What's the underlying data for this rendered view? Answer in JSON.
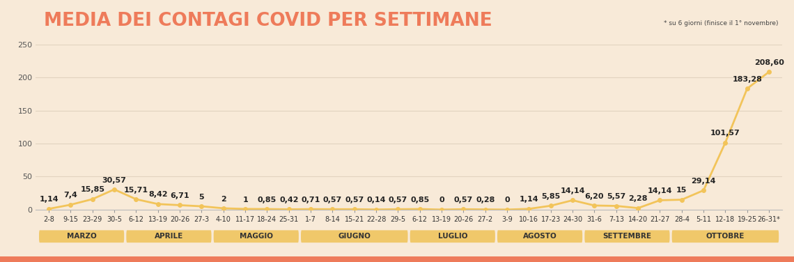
{
  "chart_data": {
    "type": "line",
    "title": "MEDIA DEI CONTAGI COVID PER SETTIMANE",
    "note": "* su 6 giorni (finisce il 1° novembre)",
    "categories": [
      "2-8",
      "9-15",
      "23-29",
      "30-5",
      "6-12",
      "13-19",
      "20-26",
      "27-3",
      "4-10",
      "11-17",
      "18-24",
      "25-31",
      "1-7",
      "8-14",
      "15-21",
      "22-28",
      "29-5",
      "6-12",
      "13-19",
      "20-26",
      "27-2",
      "3-9",
      "10-16",
      "17-23",
      "24-30",
      "31-6",
      "7-13",
      "14-20",
      "21-27",
      "28-4",
      "5-11",
      "12-18",
      "19-25",
      "26-31*"
    ],
    "values": [
      1.14,
      7.4,
      15.85,
      30.57,
      15.71,
      8.42,
      6.71,
      5,
      2,
      1,
      0.85,
      0.42,
      0.71,
      0.57,
      0.57,
      0.14,
      0.57,
      0.85,
      0,
      0.57,
      0.28,
      0,
      1.14,
      5.85,
      14.14,
      6.2,
      5.57,
      2.28,
      14.14,
      15,
      29.14,
      101.57,
      183.28,
      208.6
    ],
    "value_labels": [
      "1,14",
      "7,4",
      "15,85",
      "30,57",
      "15,71",
      "8,42",
      "6,71",
      "5",
      "2",
      "1",
      "0,85",
      "0,42",
      "0,71",
      "0,57",
      "0,57",
      "0,14",
      "0,57",
      "0,85",
      "0",
      "0,57",
      "0,28",
      "0",
      "1,14",
      "5,85",
      "14,14",
      "6,20",
      "5,57",
      "2,28",
      "14,14",
      "15",
      "29,14",
      "101,57",
      "183,28",
      "208,60"
    ],
    "month_groups": [
      {
        "label": "MARZO",
        "weeks": 4
      },
      {
        "label": "APRILE",
        "weeks": 4
      },
      {
        "label": "MAGGIO",
        "weeks": 4
      },
      {
        "label": "GIUGNO",
        "weeks": 5
      },
      {
        "label": "LUGLIO",
        "weeks": 4
      },
      {
        "label": "AGOSTO",
        "weeks": 4
      },
      {
        "label": "SETTEMBRE",
        "weeks": 4
      },
      {
        "label": "OTTOBRE",
        "weeks": 5
      }
    ],
    "color": "#f2c45a",
    "marker": "o",
    "ylim": [
      0,
      250
    ],
    "yticks": [
      0,
      50,
      100,
      150,
      200,
      250
    ],
    "grid": true,
    "data_labels": true
  }
}
